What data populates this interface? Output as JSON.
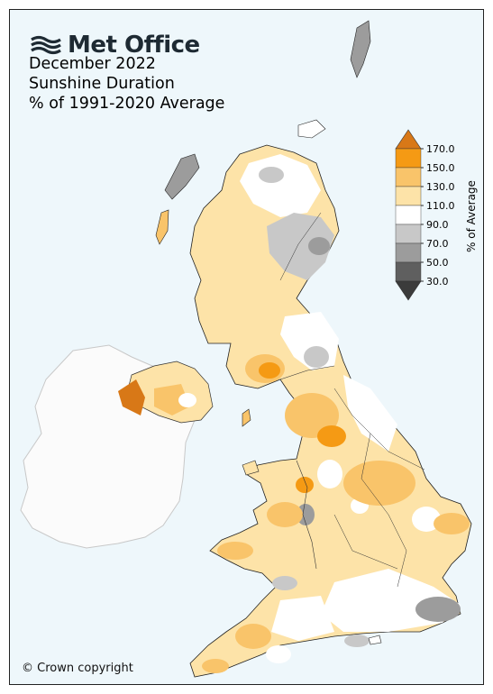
{
  "brand": {
    "name": "Met Office",
    "logo_icon": "met-office-waves-logo"
  },
  "title": {
    "line1": "December 2022",
    "line2": "Sunshine Duration",
    "line3": "% of 1991-2020 Average"
  },
  "legend": {
    "axis_label": "% of Average",
    "ticks": [
      "170.0",
      "150.0",
      "130.0",
      "110.0",
      "90.0",
      "70.0",
      "50.0",
      "30.0"
    ],
    "bins": [
      {
        "range": ">170",
        "color": "#d87817"
      },
      {
        "range": "150-170",
        "color": "#f59a14"
      },
      {
        "range": "130-150",
        "color": "#f9c46a"
      },
      {
        "range": "110-130",
        "color": "#fde3a8"
      },
      {
        "range": "90-110",
        "color": "#ffffff"
      },
      {
        "range": "70-90",
        "color": "#c8c8c8"
      },
      {
        "range": "50-70",
        "color": "#9c9c9c"
      },
      {
        "range": "30-50",
        "color": "#5f5f5f"
      },
      {
        "range": "<30",
        "color": "#3b3b3b"
      }
    ]
  },
  "copyright": "© Crown copyright",
  "colors": {
    "sea": "#eef7fb",
    "ireland": "#fbfbfb",
    "border": "#222222"
  }
}
